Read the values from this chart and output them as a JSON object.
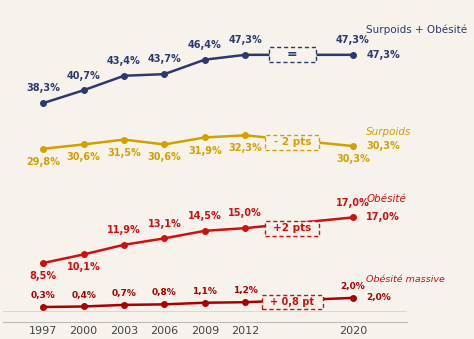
{
  "years": [
    1997,
    2000,
    2003,
    2006,
    2009,
    2012,
    2020
  ],
  "surpoids_obesite": [
    38.3,
    40.7,
    43.4,
    43.7,
    46.4,
    47.3,
    47.3
  ],
  "surpoids": [
    29.8,
    30.6,
    31.5,
    30.6,
    31.9,
    32.3,
    30.3
  ],
  "obesite": [
    8.5,
    10.1,
    11.9,
    13.1,
    14.5,
    15.0,
    17.0
  ],
  "obesite_massive": [
    0.3,
    0.4,
    0.7,
    0.8,
    1.1,
    1.2,
    2.0
  ],
  "color_so": "#2b3a6e",
  "color_sp": "#d4a000",
  "color_ob": "#cc1111",
  "color_om": "#aa0000",
  "bg_color": "#f7f3ec",
  "so_labels": [
    "38,3%",
    "40,7%",
    "43,4%",
    "43,7%",
    "46,4%",
    "47,3%",
    "47,3%"
  ],
  "sp_labels": [
    "29,8%",
    "30,6%",
    "31,5%",
    "30,6%",
    "31,9%",
    "32,3%",
    "30,3%"
  ],
  "ob_labels": [
    "8,5%",
    "10,1%",
    "11,9%",
    "13,1%",
    "14,5%",
    "15,0%",
    "17,0%"
  ],
  "om_labels": [
    "0,3%",
    "0,4%",
    "0,7%",
    "0,8%",
    "1,1%",
    "1,2%",
    "2,0%"
  ],
  "label_so": "Surpoids + Obésité",
  "label_sp": "Surpoids",
  "label_ob": "Obésité",
  "label_om": "Obésité massive",
  "ann_eq": "=",
  "ann_sp": "- 2 pts",
  "ann_ob": "+2 pts",
  "ann_om": "+ 0,8 pt",
  "xlim": [
    1994,
    2024
  ],
  "ylim": [
    -2.5,
    57
  ]
}
